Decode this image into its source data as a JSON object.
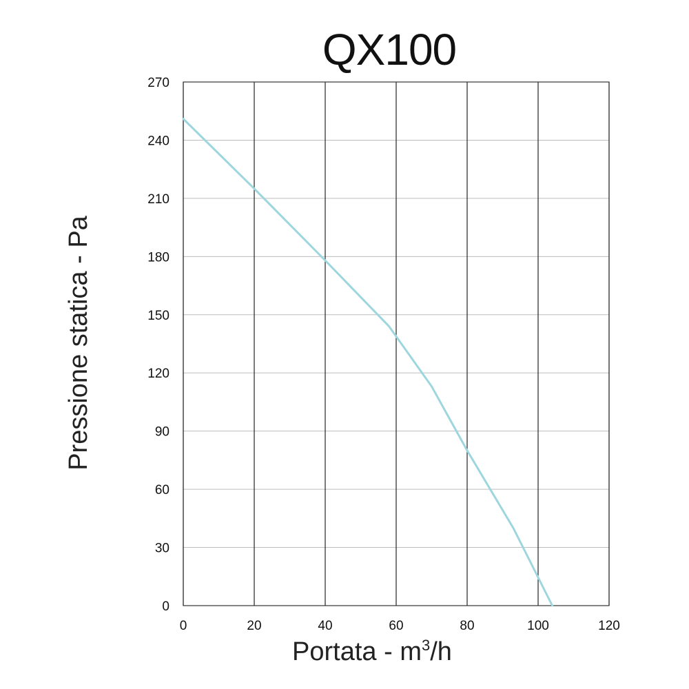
{
  "chart_data": {
    "type": "line",
    "title": "QX100",
    "xlabel_main": "Portata - m",
    "xlabel_sup": "3",
    "xlabel_tail": "/h",
    "ylabel": "Pressione statica - Pa",
    "xlim": [
      0,
      120
    ],
    "ylim": [
      0,
      270
    ],
    "x_ticks": [
      0,
      20,
      40,
      60,
      80,
      100,
      120
    ],
    "y_ticks": [
      0,
      30,
      60,
      90,
      120,
      150,
      180,
      210,
      240,
      270
    ],
    "grid": true,
    "line_color": "#9ed6de",
    "series": [
      {
        "x": [
          0,
          20,
          40,
          58,
          70,
          80,
          93,
          104
        ],
        "y": [
          251,
          215,
          178,
          144,
          113,
          80,
          40,
          0
        ]
      }
    ]
  }
}
